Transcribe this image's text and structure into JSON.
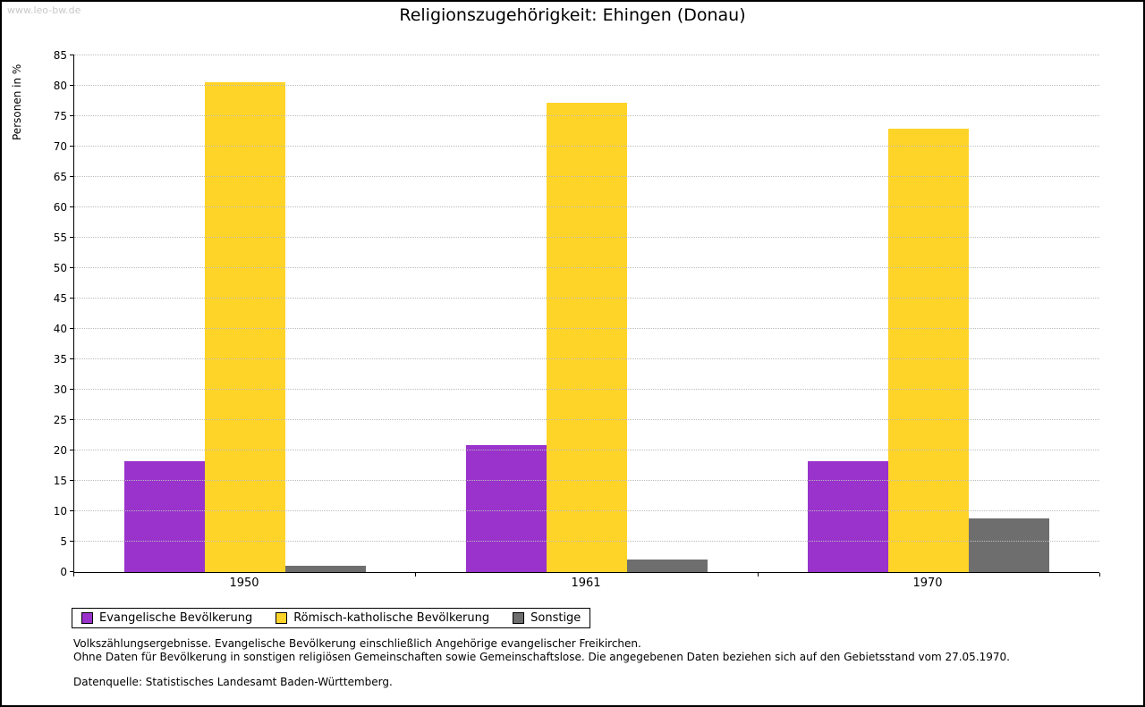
{
  "watermark": "www.leo-bw.de",
  "title": "Religionszugehörigkeit: Ehingen (Donau)",
  "chart_data": {
    "type": "bar",
    "title": "Religionszugehörigkeit: Ehingen (Donau)",
    "xlabel": "",
    "ylabel": "Personen in %",
    "ylim": [
      0,
      85
    ],
    "ytick_step": 5,
    "grid": true,
    "legend_position": "bottom-left",
    "categories": [
      "1950",
      "1961",
      "1970"
    ],
    "series": [
      {
        "name": "Evangelische Bevölkerung",
        "color": "#9933cc",
        "values": [
          18.3,
          20.9,
          18.3
        ]
      },
      {
        "name": "Römisch-katholische Bevölkerung",
        "color": "#ffd428",
        "values": [
          80.6,
          77.2,
          73.0
        ]
      },
      {
        "name": "Sonstige",
        "color": "#6e6e6e",
        "values": [
          1.0,
          2.0,
          8.8
        ]
      }
    ]
  },
  "footnotes": [
    "Volkszählungsergebnisse. Evangelische Bevölkerung einschließlich Angehörige evangelischer Freikirchen.",
    "Ohne Daten für Bevölkerung in sonstigen religiösen Gemeinschaften sowie Gemeinschaftslose. Die angegebenen Daten beziehen sich auf den Gebietsstand vom 27.05.1970.",
    "Datenquelle: Statistisches Landesamt Baden-Württemberg."
  ]
}
